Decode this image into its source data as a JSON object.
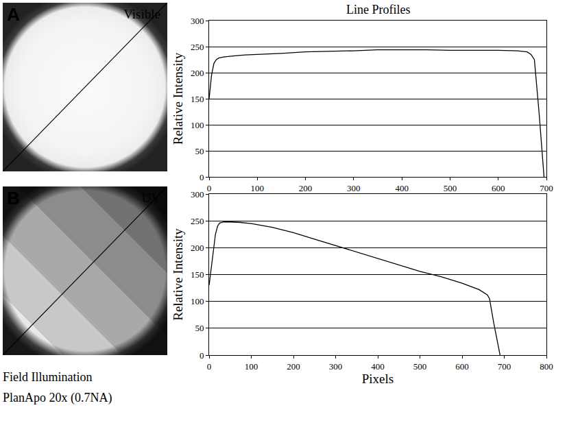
{
  "images": [
    {
      "letter": "A",
      "label": "Visible"
    },
    {
      "letter": "B",
      "label": "UV"
    }
  ],
  "caption": [
    "Field Illumination",
    "PlanApo 20x (0.7NA)"
  ],
  "chart_data": [
    {
      "type": "line",
      "title": "Line Profiles",
      "y_label": "Relative Intensity",
      "x": [
        0,
        5,
        10,
        15,
        20,
        30,
        50,
        75,
        100,
        150,
        200,
        250,
        300,
        350,
        400,
        450,
        500,
        550,
        600,
        640,
        660,
        668,
        675,
        685,
        695
      ],
      "values": [
        150,
        195,
        218,
        225,
        228,
        230,
        232,
        234,
        235,
        237,
        240,
        241,
        242,
        244,
        244,
        244,
        243,
        243,
        243,
        242,
        240,
        235,
        225,
        120,
        0
      ],
      "color": "#000000",
      "xlim": [
        0,
        700
      ],
      "xticks": [
        0,
        100,
        200,
        300,
        400,
        500,
        600,
        700
      ],
      "ylim": [
        0,
        300
      ],
      "yticks": [
        0,
        50,
        100,
        150,
        200,
        250,
        300
      ],
      "grid": true
    },
    {
      "type": "line",
      "y_label": "Relative Intensity",
      "x_label": "Pixels",
      "x": [
        0,
        5,
        10,
        15,
        20,
        25,
        35,
        50,
        75,
        100,
        150,
        200,
        250,
        300,
        350,
        400,
        450,
        500,
        550,
        600,
        640,
        660,
        665,
        675,
        690
      ],
      "values": [
        130,
        160,
        195,
        225,
        240,
        246,
        248,
        248,
        247,
        245,
        238,
        228,
        216,
        204,
        192,
        180,
        168,
        156,
        146,
        134,
        122,
        112,
        105,
        60,
        0
      ],
      "color": "#000000",
      "xlim": [
        0,
        800
      ],
      "xticks": [
        0,
        100,
        200,
        300,
        400,
        500,
        600,
        700,
        800
      ],
      "ylim": [
        0,
        300
      ],
      "yticks": [
        0,
        50,
        100,
        150,
        200,
        250,
        300
      ],
      "grid": true
    }
  ]
}
